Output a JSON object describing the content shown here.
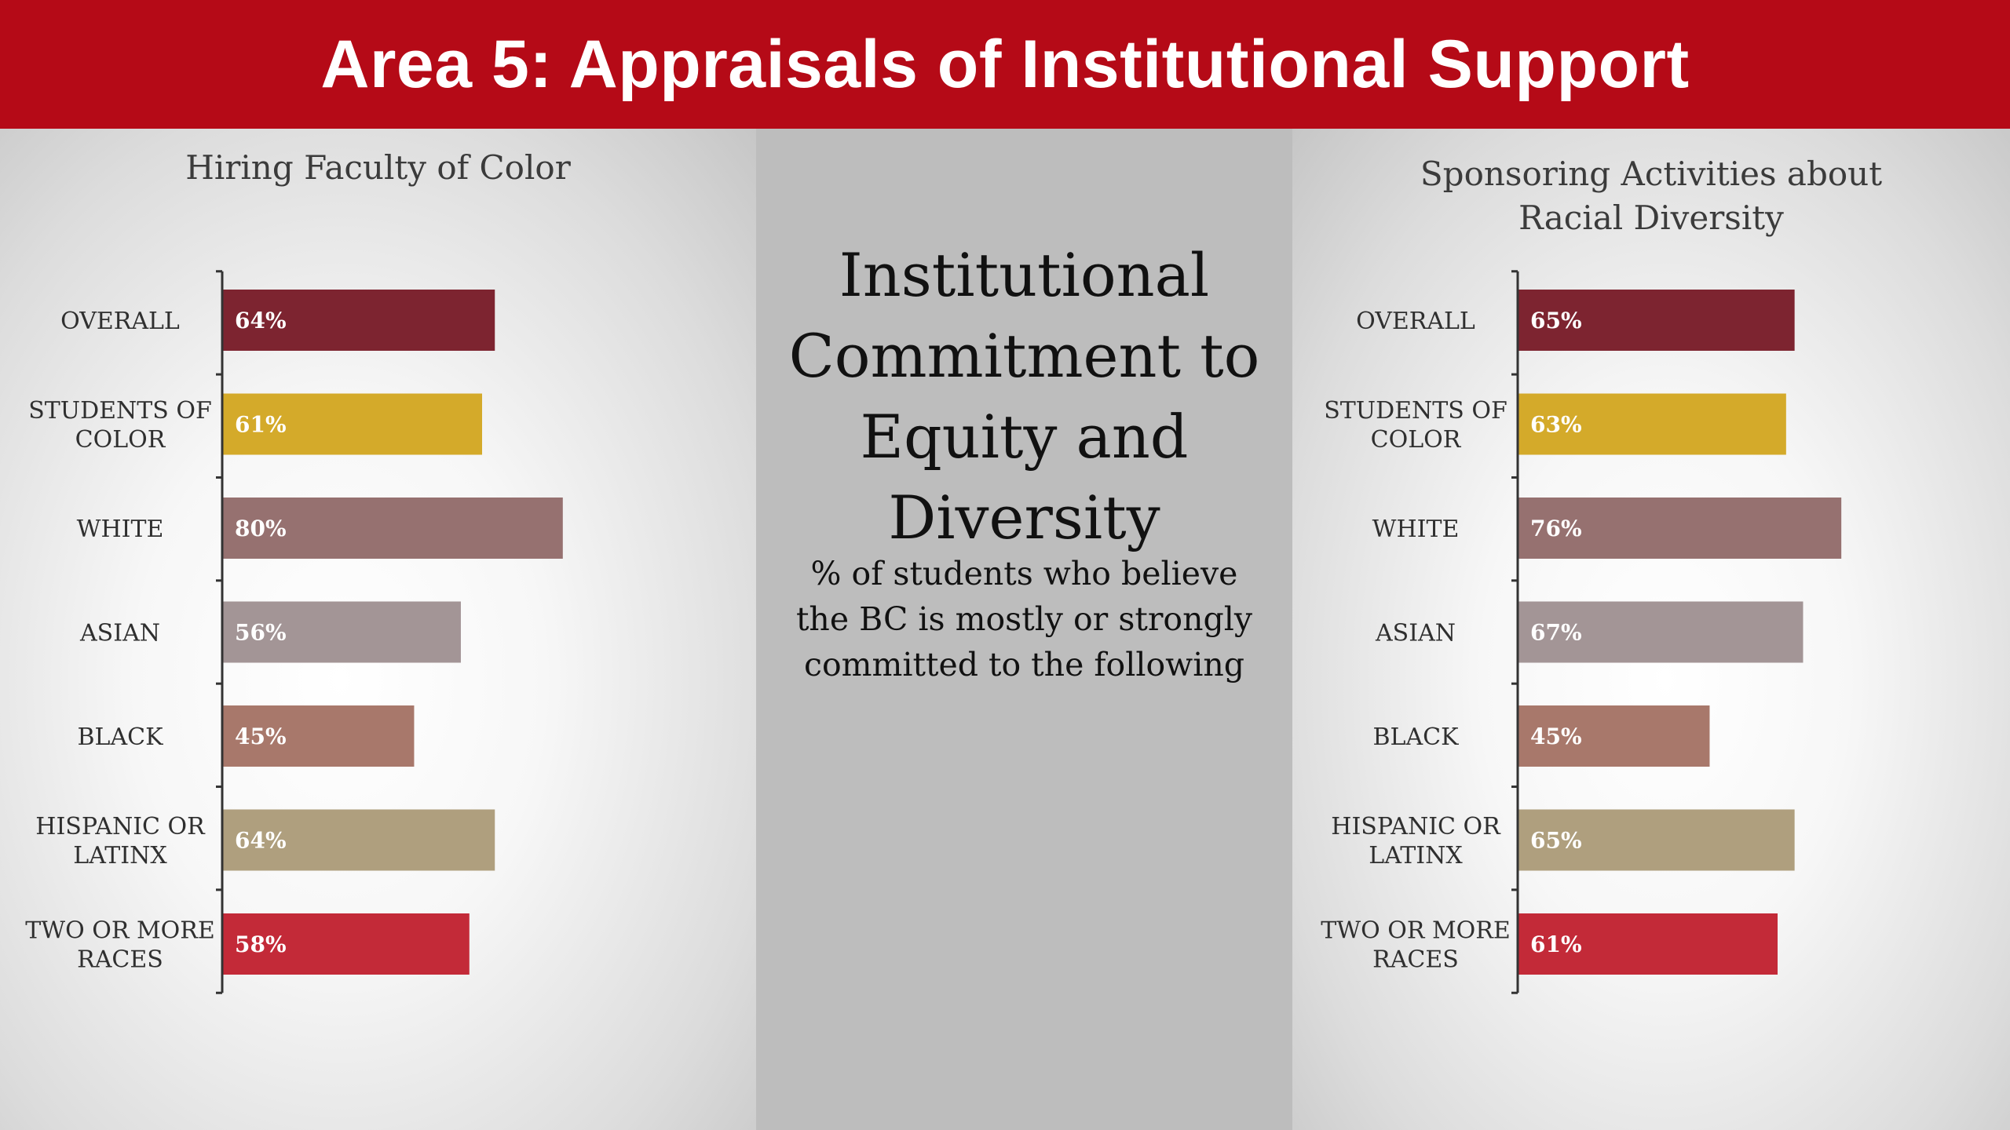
{
  "header": {
    "title": "Area 5: Appraisals of Institutional Support"
  },
  "center": {
    "heading_lines": [
      "Institutional",
      "Commitment to",
      "Equity and",
      "Diversity"
    ],
    "sub_lines": [
      "% of students who believe",
      "the BC is mostly or strongly",
      "committed to the following"
    ]
  },
  "colors": {
    "header": "#b50a17",
    "overall": "#7d2430",
    "students_of_color": "#d4aa2a",
    "white": "#967170",
    "asian": "#a39596",
    "black": "#a8786b",
    "hispanic_or_latinx": "#af9f7e",
    "two_or_more_races": "#c32a38"
  },
  "chart_data": [
    {
      "type": "bar",
      "orientation": "horizontal",
      "title_lines": [
        "Hiring Faculty of Color"
      ],
      "categories": [
        [
          "OVERALL"
        ],
        [
          "STUDENTS OF",
          "COLOR"
        ],
        [
          "WHITE"
        ],
        [
          "ASIAN"
        ],
        [
          "BLACK"
        ],
        [
          "HISPANIC OR",
          "LATINX"
        ],
        [
          "TWO OR MORE",
          "RACES"
        ]
      ],
      "values": [
        64,
        61,
        80,
        56,
        45,
        64,
        58
      ],
      "value_labels": [
        "64%",
        "61%",
        "80%",
        "56%",
        "45%",
        "64%",
        "58%"
      ],
      "bar_colors": [
        "#7d2430",
        "#d4aa2a",
        "#967170",
        "#a39596",
        "#a8786b",
        "#af9f7e",
        "#c32a38"
      ],
      "xlim": [
        0,
        100
      ],
      "grid": false,
      "legend": "none"
    },
    {
      "type": "bar",
      "orientation": "horizontal",
      "title_lines": [
        "Sponsoring Activities about",
        "Racial Diversity"
      ],
      "categories": [
        [
          "OVERALL"
        ],
        [
          "STUDENTS OF",
          "COLOR"
        ],
        [
          "WHITE"
        ],
        [
          "ASIAN"
        ],
        [
          "BLACK"
        ],
        [
          "HISPANIC OR",
          "LATINX"
        ],
        [
          "TWO OR MORE",
          "RACES"
        ]
      ],
      "values": [
        65,
        63,
        76,
        67,
        45,
        65,
        61
      ],
      "value_labels": [
        "65%",
        "63%",
        "76%",
        "67%",
        "45%",
        "65%",
        "61%"
      ],
      "bar_colors": [
        "#7d2430",
        "#d4aa2a",
        "#967170",
        "#a39596",
        "#a8786b",
        "#af9f7e",
        "#c32a38"
      ],
      "xlim": [
        0,
        100
      ],
      "grid": false,
      "legend": "none"
    }
  ]
}
